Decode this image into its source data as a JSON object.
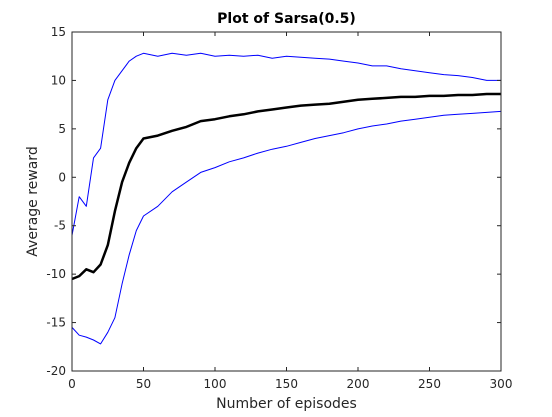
{
  "chart_data": {
    "type": "line",
    "title": "Plot of Sarsa(0.5)",
    "xlabel": "Number of episodes",
    "ylabel": "Average reward",
    "xlim": [
      0,
      300
    ],
    "ylim": [
      -20,
      15
    ],
    "xticks": [
      0,
      50,
      100,
      150,
      200,
      250,
      300
    ],
    "yticks": [
      -20,
      -15,
      -10,
      -5,
      0,
      5,
      10,
      15
    ],
    "grid": false,
    "legend": "none",
    "series": [
      {
        "color": "#0000ff",
        "width": 1,
        "x": [
          0,
          5,
          10,
          15,
          20,
          25,
          30,
          35,
          40,
          45,
          50,
          60,
          70,
          80,
          90,
          100,
          110,
          120,
          130,
          140,
          150,
          160,
          170,
          180,
          190,
          200,
          210,
          220,
          230,
          240,
          250,
          260,
          270,
          280,
          290,
          300
        ],
        "y": [
          -6,
          -2,
          -3,
          2,
          3,
          8,
          10,
          11,
          12,
          12.5,
          12.8,
          12.5,
          12.8,
          12.6,
          12.8,
          12.5,
          12.6,
          12.5,
          12.6,
          12.3,
          12.5,
          12.4,
          12.3,
          12.2,
          12.0,
          11.8,
          11.5,
          11.5,
          11.2,
          11.0,
          10.8,
          10.6,
          10.5,
          10.3,
          10.0,
          10.0
        ]
      },
      {
        "color": "#000000",
        "width": 2.5,
        "x": [
          0,
          5,
          10,
          15,
          20,
          25,
          30,
          35,
          40,
          45,
          50,
          60,
          70,
          80,
          90,
          100,
          110,
          120,
          130,
          140,
          150,
          160,
          170,
          180,
          190,
          200,
          210,
          220,
          230,
          240,
          250,
          260,
          270,
          280,
          290,
          300
        ],
        "y": [
          -10.5,
          -10.2,
          -9.5,
          -9.8,
          -9.0,
          -7.0,
          -3.5,
          -0.5,
          1.5,
          3.0,
          4.0,
          4.3,
          4.8,
          5.2,
          5.8,
          6.0,
          6.3,
          6.5,
          6.8,
          7.0,
          7.2,
          7.4,
          7.5,
          7.6,
          7.8,
          8.0,
          8.1,
          8.2,
          8.3,
          8.3,
          8.4,
          8.4,
          8.5,
          8.5,
          8.6,
          8.6
        ]
      },
      {
        "color": "#0000ff",
        "width": 1,
        "x": [
          0,
          5,
          10,
          15,
          20,
          25,
          30,
          35,
          40,
          45,
          50,
          60,
          70,
          80,
          90,
          100,
          110,
          120,
          130,
          140,
          150,
          160,
          170,
          180,
          190,
          200,
          210,
          220,
          230,
          240,
          250,
          260,
          270,
          280,
          290,
          300
        ],
        "y": [
          -15.5,
          -16.3,
          -16.5,
          -16.8,
          -17.2,
          -16.0,
          -14.5,
          -11.0,
          -8.0,
          -5.5,
          -4.0,
          -3.0,
          -1.5,
          -0.5,
          0.5,
          1.0,
          1.6,
          2.0,
          2.5,
          2.9,
          3.2,
          3.6,
          4.0,
          4.3,
          4.6,
          5.0,
          5.3,
          5.5,
          5.8,
          6.0,
          6.2,
          6.4,
          6.5,
          6.6,
          6.7,
          6.8
        ]
      }
    ]
  }
}
